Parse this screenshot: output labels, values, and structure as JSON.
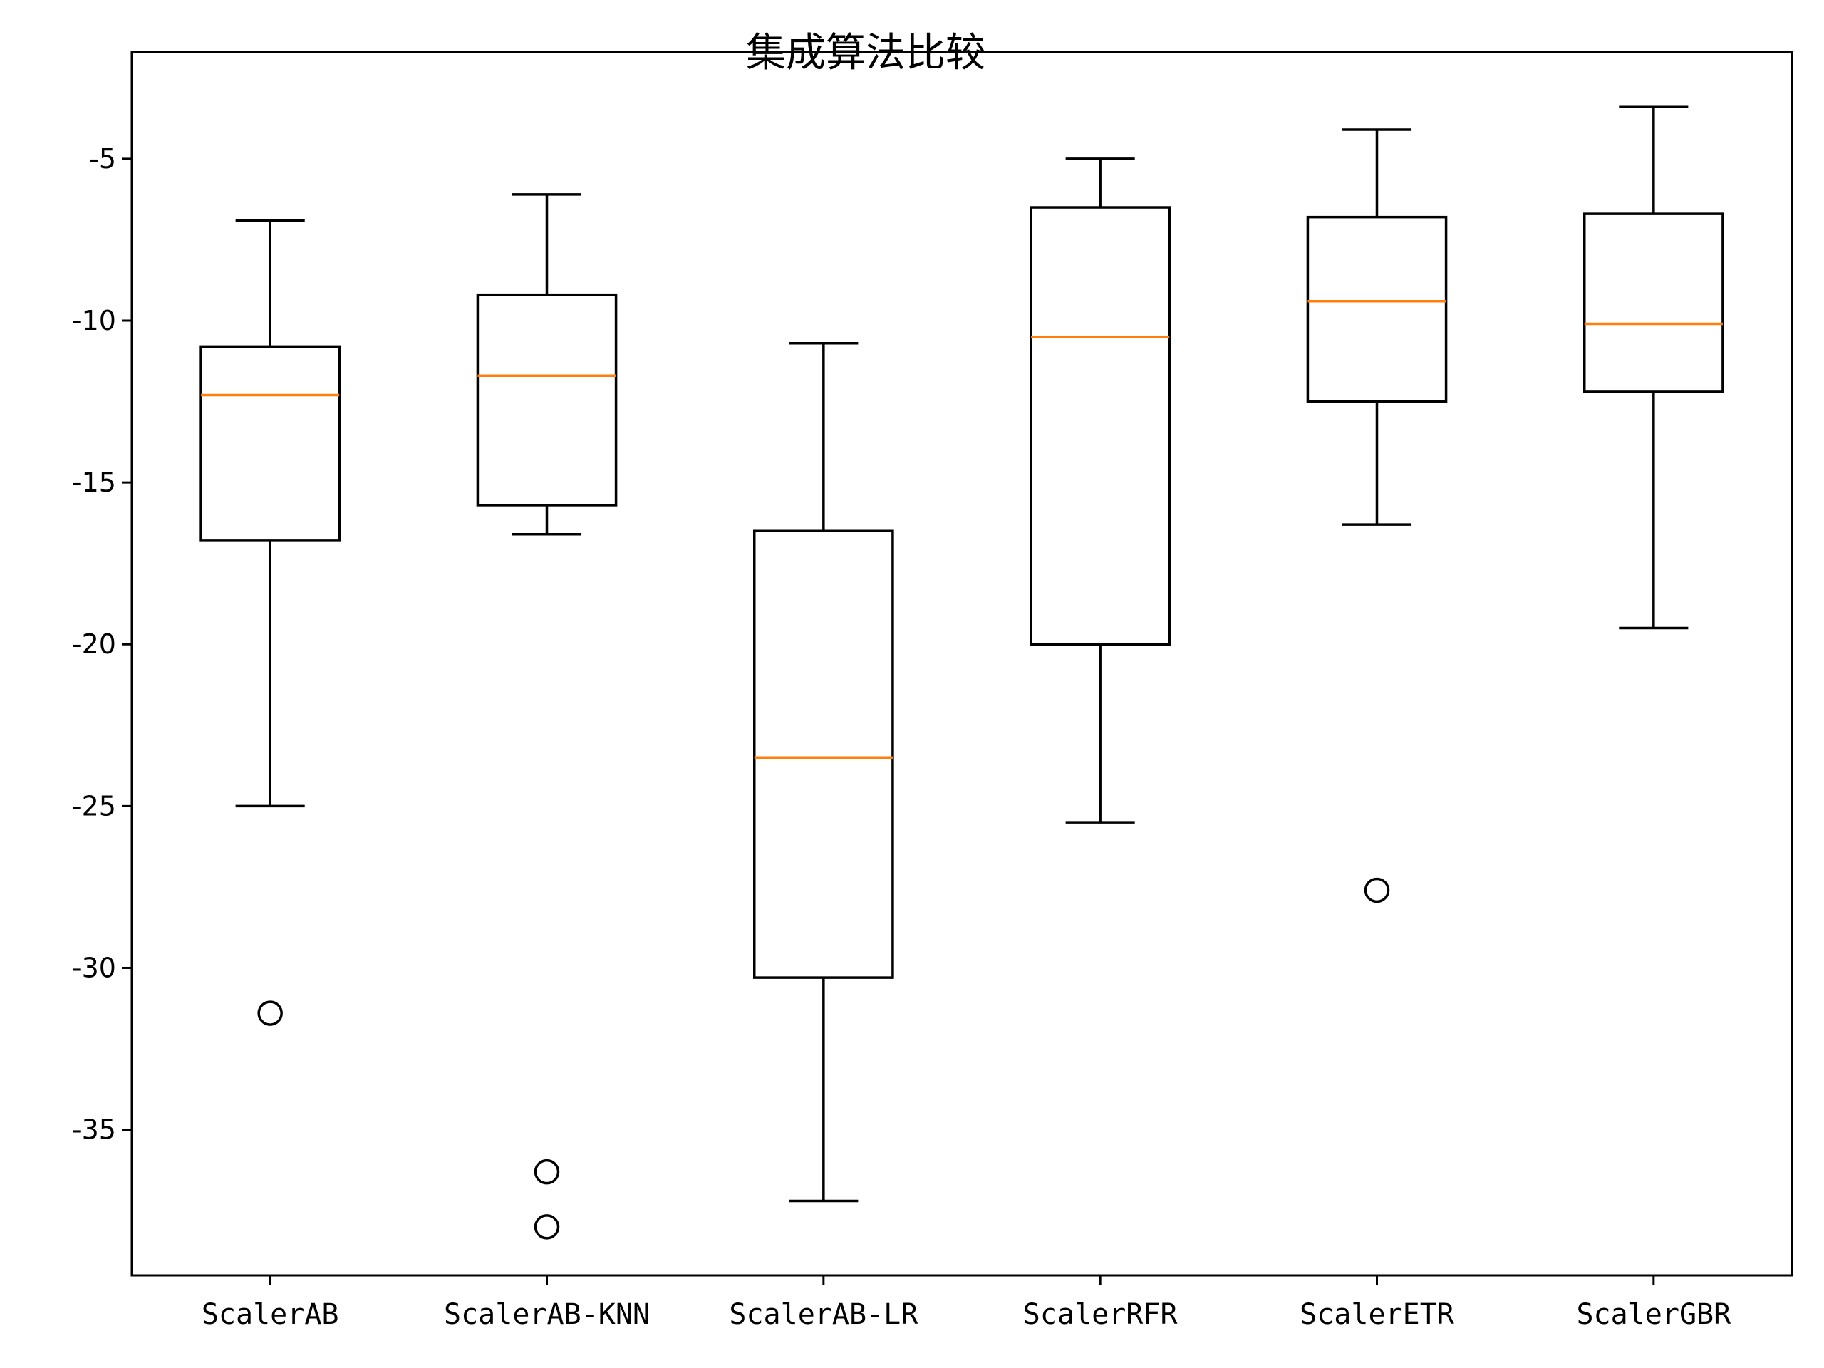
{
  "chart_data": {
    "type": "boxplot",
    "title": "集成算法比较",
    "xlabel": "",
    "ylabel": "",
    "ylim": [
      -39.5,
      -1.7
    ],
    "yticks": [
      -5,
      -10,
      -15,
      -20,
      -25,
      -30,
      -35
    ],
    "grid": false,
    "colors": {
      "box": "#000000",
      "median": "#ff7f0e",
      "background": "#ffffff"
    },
    "categories": [
      "ScalerAB",
      "ScalerAB-KNN",
      "ScalerAB-LR",
      "ScalerRFR",
      "ScalerETR",
      "ScalerGBR"
    ],
    "boxes": [
      {
        "whisker_low": -25.0,
        "q1": -16.8,
        "median": -12.3,
        "q3": -10.8,
        "whisker_high": -6.9,
        "outliers": [
          -31.4
        ]
      },
      {
        "whisker_low": -16.6,
        "q1": -15.7,
        "median": -11.7,
        "q3": -9.2,
        "whisker_high": -6.1,
        "outliers": [
          -36.3,
          -38.0
        ]
      },
      {
        "whisker_low": -37.2,
        "q1": -30.3,
        "median": -23.5,
        "q3": -16.5,
        "whisker_high": -10.7,
        "outliers": []
      },
      {
        "whisker_low": -25.5,
        "q1": -20.0,
        "median": -10.5,
        "q3": -6.5,
        "whisker_high": -5.0,
        "outliers": []
      },
      {
        "whisker_low": -16.3,
        "q1": -12.5,
        "median": -9.4,
        "q3": -6.8,
        "whisker_high": -4.1,
        "outliers": [
          -27.6
        ]
      },
      {
        "whisker_low": -19.5,
        "q1": -12.2,
        "median": -10.1,
        "q3": -6.7,
        "whisker_high": -3.4,
        "outliers": []
      }
    ]
  }
}
